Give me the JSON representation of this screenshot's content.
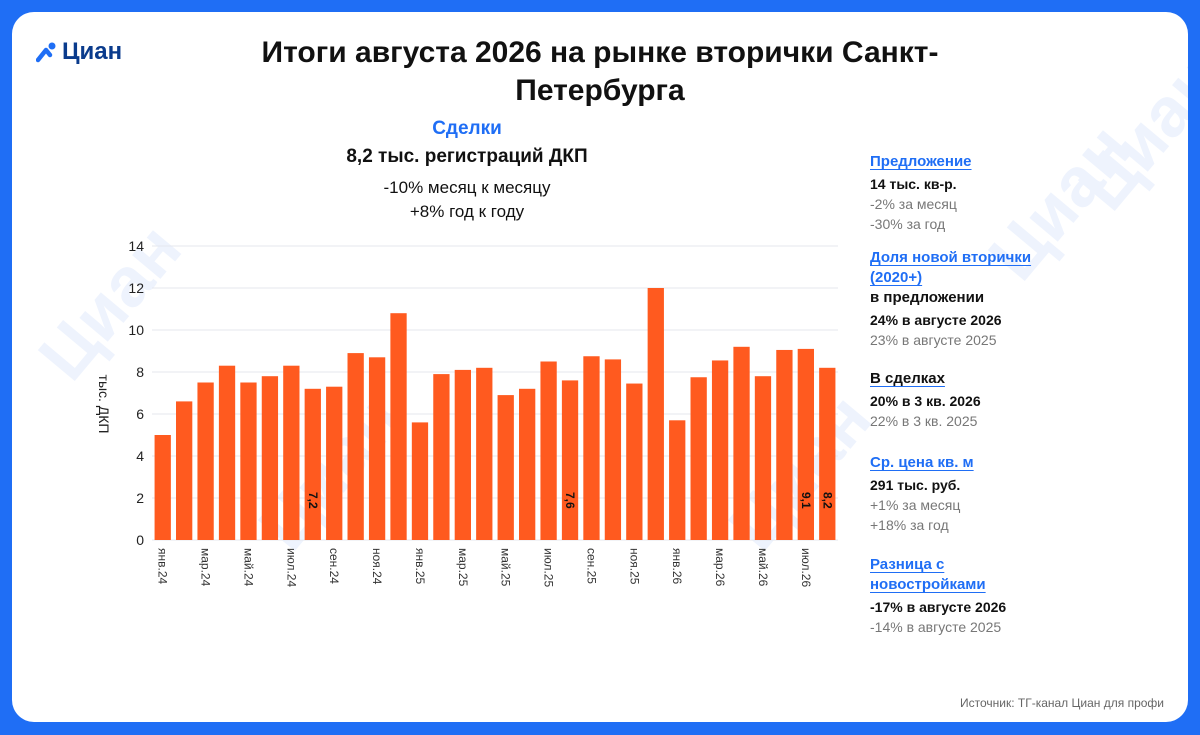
{
  "brand": {
    "logo_text": "Циан"
  },
  "title": "Итоги августа 2026 на рынке вторички Санкт-Петербурга",
  "deals": {
    "title": "Сделки",
    "value": "8,2 тыс. регистраций ДКП",
    "change_month": "-10% месяц к месяцу",
    "change_year": "+8% год к году"
  },
  "chart_data": {
    "type": "bar",
    "ylabel": "тыс. ДКП",
    "ylim": [
      0,
      14
    ],
    "yticks": [
      0,
      2,
      4,
      6,
      8,
      10,
      12,
      14
    ],
    "grid": true,
    "bar_color": "#ff5a1f",
    "categories": [
      "янв.24",
      "фев.24",
      "мар.24",
      "апр.24",
      "май.24",
      "июн.24",
      "июл.24",
      "авг.24",
      "сен.24",
      "окт.24",
      "ноя.24",
      "дек.24",
      "янв.25",
      "фев.25",
      "мар.25",
      "апр.25",
      "май.25",
      "июн.25",
      "июл.25",
      "авг.25",
      "сен.25",
      "окт.25",
      "ноя.25",
      "дек.25",
      "янв.26",
      "фев.26",
      "мар.26",
      "апр.26",
      "май.26",
      "июн.26",
      "июл.26",
      "авг.26"
    ],
    "x_tick_labels": [
      "янв.24",
      "",
      "мар.24",
      "",
      "май.24",
      "",
      "июл.24",
      "",
      "сен.24",
      "",
      "ноя.24",
      "",
      "янв.25",
      "",
      "мар.25",
      "",
      "май.25",
      "",
      "июл.25",
      "",
      "сен.25",
      "",
      "ноя.25",
      "",
      "янв.26",
      "",
      "мар.26",
      "",
      "май.26",
      "",
      "июл.26",
      ""
    ],
    "values": [
      5.0,
      6.6,
      7.5,
      8.3,
      7.5,
      7.8,
      8.3,
      7.2,
      7.3,
      8.9,
      8.7,
      10.8,
      5.6,
      7.9,
      8.1,
      8.2,
      6.9,
      7.2,
      8.5,
      7.6,
      8.75,
      8.6,
      7.45,
      12.0,
      5.7,
      7.75,
      8.55,
      9.2,
      7.8,
      9.05,
      9.1,
      8.2
    ],
    "data_labels": {
      "7": "7,2",
      "19": "7,6",
      "30": "9,1",
      "31": "8,2"
    }
  },
  "sidebar": {
    "offer": {
      "title": "Предложение",
      "value": "14 тыс. кв-р.",
      "note1": "-2% за месяц",
      "note2": "-30% за год"
    },
    "new_secondary": {
      "title": "Доля новой вторички (2020+)",
      "subtitle": "в предложении",
      "value": "24% в августе 2026",
      "note": "23% в августе 2025"
    },
    "in_deals": {
      "title": "В сделках",
      "value": "20% в 3 кв. 2026",
      "note": "22% в 3 кв. 2025"
    },
    "price": {
      "title": "Ср. цена кв. м",
      "value": "291 тыс. руб.",
      "note1": "+1% за месяц",
      "note2": "+18% за год"
    },
    "diff": {
      "title": "Разница с новостройками",
      "value": "-17% в августе 2026",
      "note": "-14% в августе 2025"
    }
  },
  "source": "Источник: ТГ-канал Циан для профи"
}
